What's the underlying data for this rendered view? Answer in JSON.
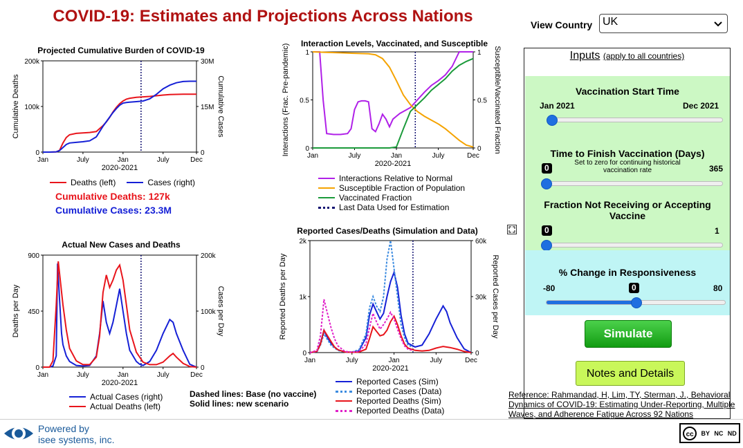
{
  "title": "COVID-19: Estimates and Projections Across Nations",
  "view_country": {
    "label": "View Country",
    "selected": "UK"
  },
  "inputs": {
    "heading": "Inputs",
    "subheading": "(apply to all countries)",
    "vaccination_start": {
      "label": "Vaccination Start Time",
      "min_label": "Jan 2021",
      "max_label": "Dec 2021",
      "position": 0.0
    },
    "time_to_finish": {
      "label": "Time to Finish Vaccination (Days)",
      "note": "Set to zero for continuing historical vaccination rate",
      "value": "0",
      "max_label": "365",
      "position": 0.0
    },
    "fraction_not": {
      "label": "Fraction Not Receiving or Accepting Vaccine",
      "value": "0",
      "max_label": "1",
      "position": 0.0
    },
    "responsiveness": {
      "label": "% Change in Responsiveness",
      "min_label": "-80",
      "value": "0",
      "max_label": "80",
      "position": 0.5
    }
  },
  "buttons": {
    "simulate": "Simulate",
    "notes": "Notes and Details"
  },
  "reference": {
    "label": "Reference",
    "text": ": Rahmandad, H, Lim, TY, Sterman, J., Behavioral Dynamics of COVID-19: Estimating Under-Reporting, Multiple Waves, and Adherence Fatigue Across 92 Nations"
  },
  "footer": {
    "powered_by": "Powered by",
    "company": "isee systems, inc.",
    "license": [
      "cc",
      "BY",
      "NC",
      "ND"
    ]
  },
  "summary": {
    "deaths_label": "Cumulative Deaths: 127k",
    "cases_label": "Cumulative Cases: 23.3M"
  },
  "notes_dashed": {
    "line1": "Dashed lines: Base (no vaccine)",
    "line2": "Solid lines: new scenario"
  },
  "colors": {
    "red": "#e8141b",
    "blue": "#1520d6",
    "purple": "#b020e8",
    "orange": "#f5a300",
    "green": "#1a9a3a",
    "navy": "#101070",
    "title": "#b01212"
  },
  "x_ticks": [
    "Jan",
    "July",
    "Jan",
    "July",
    "Dec"
  ],
  "x_period": "2020-2021",
  "chart_data": [
    {
      "id": "cumulative",
      "type": "line",
      "title": "Projected Cumulative Burden of COVID-19",
      "ylabel_left": "Cumulative Deaths",
      "ylabel_right": "Cumulative Cases",
      "left_ticks": [
        "200k",
        "100k",
        "0"
      ],
      "right_ticks": [
        "30M",
        "15M",
        "0"
      ],
      "left_range": [
        0,
        200000
      ],
      "right_range": [
        0,
        30000000
      ],
      "x_range": [
        0,
        23
      ],
      "last_data_x": 14.7,
      "legend": [
        "Deaths (left)",
        "Cases (right)"
      ],
      "series": [
        {
          "name": "Deaths (left)",
          "axis": "left",
          "color": "#e8141b",
          "x": [
            0,
            1,
            2,
            2.5,
            3,
            3.5,
            4,
            5,
            6,
            7,
            8,
            9,
            9.5,
            10,
            10.5,
            11,
            11.5,
            12,
            12.5,
            13,
            14,
            15,
            16,
            17,
            18,
            19,
            20,
            21,
            22,
            23
          ],
          "y": [
            0,
            0,
            500,
            4000,
            20000,
            32000,
            38000,
            41000,
            42000,
            43000,
            45000,
            58000,
            66000,
            76000,
            88000,
            98000,
            106000,
            112000,
            116000,
            118000,
            120000,
            121000,
            122000,
            123500,
            125000,
            126000,
            126500,
            127000,
            127000,
            127000
          ]
        },
        {
          "name": "Cases (right)",
          "axis": "right",
          "color": "#1520d6",
          "x": [
            0,
            1,
            2,
            2.5,
            3,
            3.5,
            4,
            5,
            6,
            7,
            8,
            9,
            9.5,
            10,
            10.5,
            11,
            11.5,
            12,
            12.5,
            13,
            14,
            15,
            16,
            17,
            18,
            19,
            20,
            21,
            22,
            23
          ],
          "y": [
            0,
            0,
            100000,
            500000,
            1500000,
            2500000,
            3000000,
            3200000,
            3400000,
            3700000,
            5000000,
            8500000,
            10000000,
            11500000,
            13000000,
            14300000,
            15400000,
            16100000,
            16300000,
            16400000,
            16600000,
            16800000,
            17500000,
            19000000,
            20800000,
            22000000,
            22800000,
            23200000,
            23300000,
            23300000
          ]
        }
      ]
    },
    {
      "id": "interaction",
      "type": "line",
      "title": "Interaction Levels, Vaccinated, and Susceptible",
      "ylabel_left": "Interactions (Frac. Pre-pandemic)",
      "ylabel_right": "Susceptible/Vaccinated Fraction",
      "left_ticks": [
        "1",
        "0.5",
        "0"
      ],
      "right_ticks": [
        "1",
        "0.5",
        "0"
      ],
      "left_range": [
        0,
        1
      ],
      "right_range": [
        0,
        1
      ],
      "x_range": [
        0,
        23
      ],
      "last_data_x": 14.7,
      "legend": [
        "Interactions Relative to Normal",
        "Susceptible Fraction of Population",
        "Vaccinated Fraction",
        "Last Data Used for Estimation"
      ],
      "series": [
        {
          "name": "Interactions Relative to Normal",
          "axis": "left",
          "color": "#b020e8",
          "x": [
            0,
            1,
            1.5,
            2,
            3,
            4,
            5,
            5.5,
            6,
            6.5,
            7,
            7.5,
            8,
            8.5,
            9,
            9.5,
            10,
            10.5,
            11,
            11.5,
            12,
            12.5,
            13,
            14,
            15,
            16,
            17,
            18,
            19,
            20,
            21,
            22,
            23
          ],
          "y": [
            1,
            1,
            0.5,
            0.15,
            0.14,
            0.14,
            0.15,
            0.2,
            0.4,
            0.48,
            0.49,
            0.49,
            0.48,
            0.2,
            0.17,
            0.25,
            0.35,
            0.3,
            0.22,
            0.3,
            0.33,
            0.36,
            0.38,
            0.42,
            0.5,
            0.58,
            0.65,
            0.7,
            0.76,
            0.85,
            1.0,
            1.0,
            1.0
          ]
        },
        {
          "name": "Susceptible Fraction of Population",
          "axis": "right",
          "color": "#f5a300",
          "x": [
            0,
            2,
            4,
            6,
            8,
            9,
            10,
            11,
            12,
            13,
            14,
            15,
            16,
            17,
            18,
            19,
            20,
            21,
            22,
            23
          ],
          "y": [
            1.0,
            0.995,
            0.99,
            0.985,
            0.98,
            0.97,
            0.93,
            0.84,
            0.7,
            0.55,
            0.45,
            0.38,
            0.33,
            0.29,
            0.25,
            0.2,
            0.14,
            0.08,
            0.03,
            0.01
          ]
        },
        {
          "name": "Vaccinated Fraction",
          "axis": "right",
          "color": "#1a9a3a",
          "x": [
            0,
            4,
            8,
            10,
            11,
            12,
            13,
            14,
            15,
            16,
            17,
            18,
            19,
            20,
            21,
            22,
            23
          ],
          "y": [
            0,
            0,
            0,
            0,
            0,
            0.01,
            0.2,
            0.38,
            0.45,
            0.52,
            0.6,
            0.66,
            0.72,
            0.8,
            0.86,
            0.9,
            0.93
          ]
        }
      ]
    },
    {
      "id": "actual",
      "type": "line",
      "title": "Actual New Cases and Deaths",
      "ylabel_left": "Deaths per Day",
      "ylabel_right": "Cases per Day",
      "left_ticks": [
        "900",
        "450",
        "0"
      ],
      "right_ticks": [
        "200k",
        "100k",
        "0"
      ],
      "left_range": [
        0,
        900
      ],
      "right_range": [
        0,
        200000
      ],
      "x_range": [
        0,
        23
      ],
      "last_data_x": 14.7,
      "legend": [
        "Actual Cases (right)",
        "Actual Deaths (left)"
      ],
      "series": [
        {
          "name": "Actual Cases (right)",
          "axis": "right",
          "color": "#1520d6",
          "x": [
            0,
            1,
            1.5,
            2,
            2.2,
            2.5,
            2.8,
            3,
            3.5,
            4,
            5,
            6,
            7,
            8,
            8.5,
            9,
            9.5,
            10,
            10.5,
            11,
            11.5,
            12,
            12.5,
            13,
            14,
            14.5,
            15,
            16,
            17,
            18,
            19,
            19.5,
            20,
            21,
            22,
            23
          ],
          "y": [
            0,
            0,
            2000,
            20000,
            185000,
            120000,
            60000,
            40000,
            20000,
            10000,
            3000,
            2000,
            3000,
            20000,
            60000,
            118000,
            80000,
            60000,
            80000,
            110000,
            140000,
            100000,
            60000,
            30000,
            10000,
            5000,
            3000,
            10000,
            30000,
            60000,
            85000,
            80000,
            60000,
            30000,
            5000,
            0
          ]
        },
        {
          "name": "Actual Deaths (left)",
          "axis": "left",
          "color": "#e8141b",
          "x": [
            0,
            1,
            1.5,
            2,
            2.3,
            2.6,
            3,
            3.5,
            4,
            5,
            6,
            7,
            8,
            8.5,
            9,
            9.5,
            10,
            10.5,
            11,
            11.5,
            12,
            12.5,
            13,
            14,
            15,
            16,
            17,
            18,
            19,
            19.5,
            20,
            21,
            22,
            23
          ],
          "y": [
            0,
            0,
            50,
            500,
            850,
            700,
            500,
            300,
            150,
            50,
            20,
            20,
            80,
            250,
            600,
            740,
            640,
            700,
            780,
            820,
            700,
            500,
            300,
            120,
            40,
            20,
            20,
            40,
            90,
            110,
            80,
            30,
            5,
            0
          ]
        }
      ]
    },
    {
      "id": "reported",
      "type": "line",
      "title": "Reported Cases/Deaths (Simulation and Data)",
      "ylabel_left": "Reported Deaths per Day",
      "ylabel_right": "Reported Cases per Day",
      "left_ticks": [
        "2k",
        "1k",
        "0"
      ],
      "right_ticks": [
        "60k",
        "30k",
        "0"
      ],
      "left_range": [
        0,
        2000
      ],
      "right_range": [
        0,
        60000
      ],
      "x_range": [
        0,
        23
      ],
      "last_data_x": 14.7,
      "legend": [
        "Reported Cases (Sim)",
        "Reported Cases (Data)",
        "Reported Deaths (Sim)",
        "Reported Deaths (Data)"
      ],
      "series": [
        {
          "name": "Reported Cases (Sim)",
          "axis": "right",
          "color": "#1520d6",
          "dash": false,
          "x": [
            0,
            1,
            1.5,
            2,
            2.5,
            3,
            3.5,
            4,
            5,
            6,
            7,
            8,
            8.5,
            9,
            9.5,
            10,
            10.5,
            11,
            11.5,
            12,
            12.5,
            13,
            13.5,
            14,
            15,
            16,
            17,
            18,
            19,
            19.5,
            20,
            21,
            22,
            23
          ],
          "y": [
            0,
            500,
            5000,
            12000,
            8000,
            5000,
            3000,
            1500,
            300,
            200,
            1000,
            8000,
            20000,
            26000,
            22000,
            18000,
            21000,
            30000,
            38000,
            43000,
            35000,
            20000,
            10000,
            5000,
            3000,
            4000,
            10000,
            18000,
            25000,
            22000,
            16000,
            8000,
            2000,
            0
          ]
        },
        {
          "name": "Reported Cases (Data)",
          "axis": "right",
          "color": "#3a8ae0",
          "dash": true,
          "x": [
            0,
            1,
            1.5,
            2,
            2.5,
            3,
            3.5,
            4,
            5,
            6,
            7,
            8,
            8.5,
            9,
            9.5,
            10,
            10.5,
            11,
            11.5,
            12,
            12.5,
            13,
            13.5,
            14,
            14.7
          ],
          "y": [
            0,
            500,
            4000,
            10000,
            7000,
            4000,
            2500,
            1200,
            200,
            300,
            1500,
            10000,
            24000,
            30000,
            25000,
            22000,
            30000,
            50000,
            60000,
            45000,
            30000,
            15000,
            8000,
            4000,
            3000
          ]
        },
        {
          "name": "Reported Deaths (Sim)",
          "axis": "left",
          "color": "#e8141b",
          "dash": false,
          "x": [
            0,
            1,
            1.5,
            2,
            2.5,
            3,
            3.5,
            4,
            5,
            6,
            7,
            8,
            8.5,
            9,
            9.5,
            10,
            10.5,
            11,
            11.5,
            12,
            12.5,
            13,
            13.5,
            14,
            15,
            16,
            17,
            18,
            19,
            20,
            21,
            22,
            23
          ],
          "y": [
            0,
            20,
            150,
            400,
            300,
            200,
            100,
            50,
            10,
            5,
            10,
            60,
            250,
            460,
            380,
            300,
            320,
            400,
            550,
            650,
            500,
            300,
            150,
            80,
            40,
            30,
            40,
            80,
            110,
            90,
            60,
            20,
            0
          ]
        },
        {
          "name": "Reported Deaths (Data)",
          "axis": "left",
          "color": "#e020c8",
          "dash": true,
          "x": [
            0,
            1,
            1.5,
            2,
            2.5,
            3,
            3.5,
            4,
            5,
            6,
            7,
            8,
            8.5,
            9,
            9.5,
            10,
            10.5,
            11,
            11.5,
            12,
            12.5,
            13,
            13.5,
            14,
            14.7
          ],
          "y": [
            0,
            40,
            300,
            950,
            700,
            450,
            250,
            120,
            20,
            10,
            20,
            150,
            450,
            700,
            550,
            420,
            500,
            600,
            720,
            600,
            420,
            250,
            120,
            60,
            40
          ]
        }
      ]
    }
  ]
}
